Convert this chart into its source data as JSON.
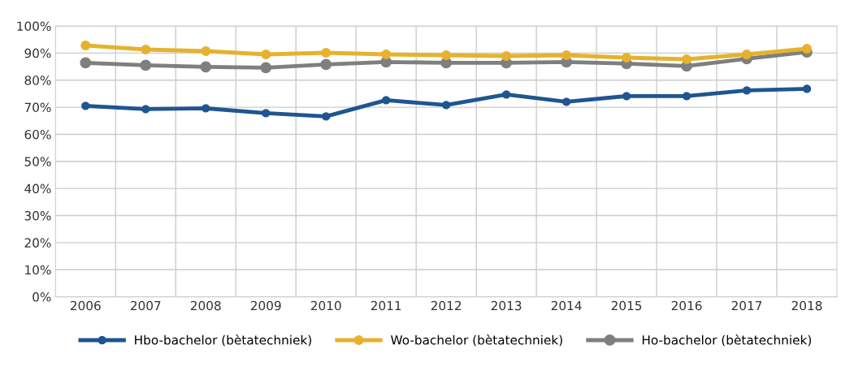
{
  "chart_data": {
    "type": "line",
    "categories": [
      "2006",
      "2007",
      "2008",
      "2009",
      "2010",
      "2011",
      "2012",
      "2013",
      "2014",
      "2015",
      "2016",
      "2017",
      "2018"
    ],
    "series": [
      {
        "name": "Hbo-bachelor (bètatechniek)",
        "color": "#1f5591",
        "values": [
          70.5,
          69.3,
          69.6,
          67.8,
          66.6,
          72.6,
          70.8,
          74.7,
          72.0,
          74.1,
          74.1,
          76.2,
          76.8
        ]
      },
      {
        "name": "Wo-bachelor (bètatechniek)",
        "color": "#e6b22e",
        "values": [
          92.8,
          91.3,
          90.7,
          89.5,
          90.1,
          89.5,
          89.2,
          88.9,
          89.2,
          88.3,
          87.7,
          89.5,
          91.6
        ]
      },
      {
        "name": "Ho-bachelor (bètatechniek)",
        "color": "#7f7f7f",
        "values": [
          86.4,
          85.5,
          84.9,
          84.6,
          85.8,
          86.7,
          86.4,
          86.4,
          86.7,
          86.1,
          85.2,
          87.9,
          90.4
        ]
      }
    ],
    "ylim": [
      0,
      100
    ],
    "yticks": [
      {
        "value": 0,
        "label": "0%"
      },
      {
        "value": 10,
        "label": "10%"
      },
      {
        "value": 20,
        "label": "20%"
      },
      {
        "value": 30,
        "label": "30%"
      },
      {
        "value": 40,
        "label": "40%"
      },
      {
        "value": 50,
        "label": "50%"
      },
      {
        "value": 60,
        "label": "60%"
      },
      {
        "value": 70,
        "label": "70%"
      },
      {
        "value": 80,
        "label": "80%"
      },
      {
        "value": 90,
        "label": "90%"
      },
      {
        "value": 100,
        "label": "100%"
      }
    ],
    "grid": true,
    "legend": "bottom",
    "marker": "circle",
    "line_style": "solid"
  }
}
